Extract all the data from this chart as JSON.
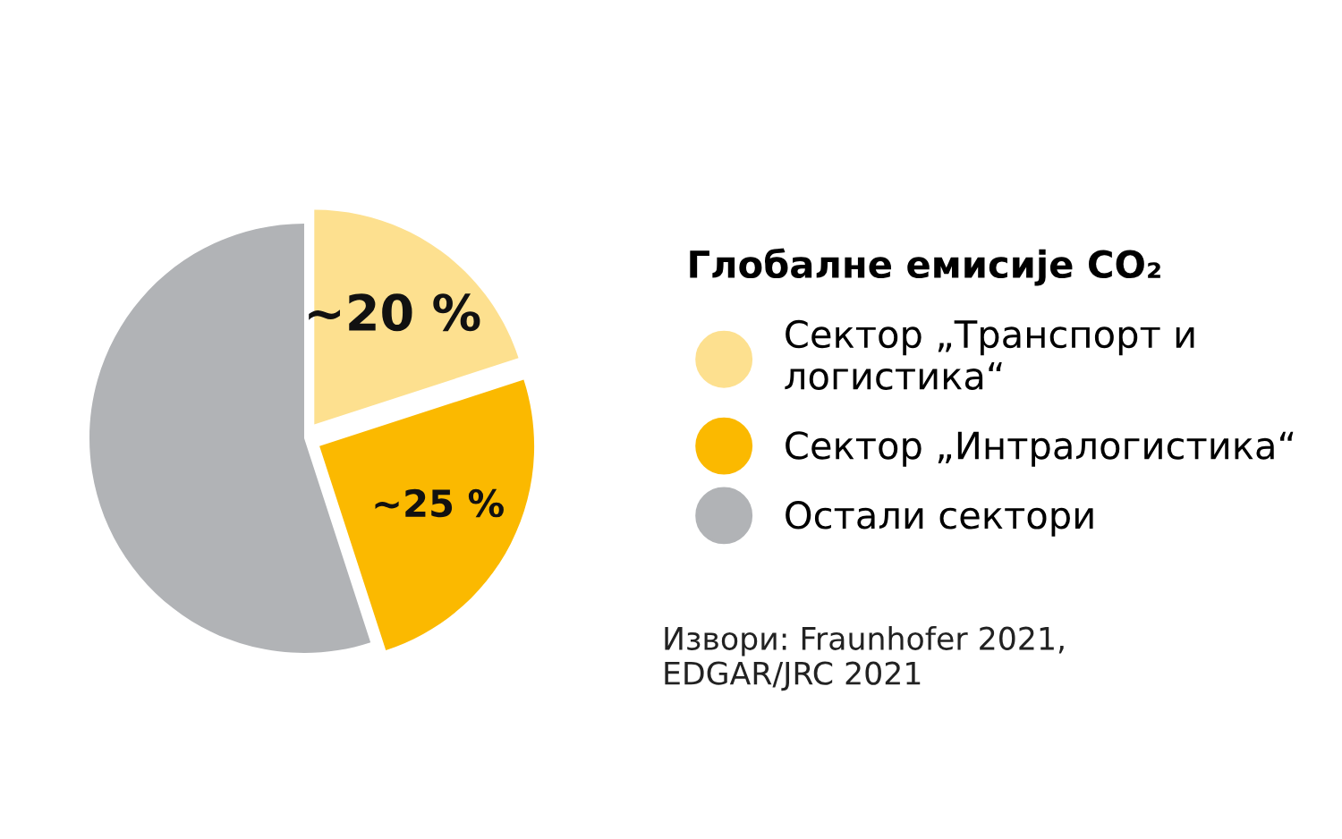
{
  "chart_data": {
    "type": "pie",
    "legend_title": "Глобалне емисије CO₂",
    "categories": [
      "Сектор „Транспорт и\nлогистика“",
      "Сектор „Интралогистика“",
      "Остали сектори"
    ],
    "values": [
      20,
      25,
      55
    ],
    "colors": [
      "#fde08f",
      "#fbb900",
      "#b1b3b6"
    ],
    "value_labels": [
      "~20 %",
      "~25 %",
      null
    ],
    "legend": "right",
    "annotations": [
      "Извори: Fraunhofer 2021,\nEDGAR/JRC 2021"
    ]
  }
}
